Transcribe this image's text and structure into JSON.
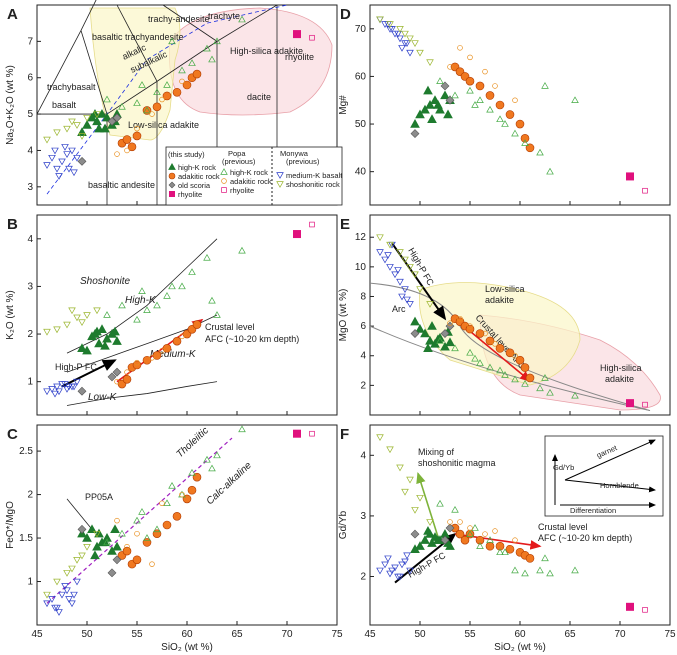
{
  "colors": {
    "hk": "#1e7b2e",
    "adak": "#f07820",
    "adak_edge": "#b03a00",
    "old": "#8c8c8c",
    "rhy": "#e0117d",
    "mkb": "#2a3cc8",
    "shosh": "#9ab52d",
    "popa_hk": "#44aa44",
    "popa_adak": "#e89020",
    "popa_rhy": "#e0117d",
    "red": "#e41a1c",
    "purple": "#a020c0",
    "blue": "#1a2ee0"
  },
  "chart_data": [
    {
      "id": "A",
      "type": "scatter",
      "xlim": [
        45,
        75
      ],
      "ylim": [
        2.5,
        8
      ],
      "ylabel": "Na₂O+K₂O (wt %)",
      "yticks": [
        3,
        4,
        5,
        6,
        7
      ],
      "fields": [
        "basalt",
        "trachybasalt",
        "basaltic trachyandesite",
        "trachy-andesite",
        "trachyte",
        "basaltic andesite",
        "andesite",
        "dacite",
        "rhyolite"
      ],
      "annotations": [
        "alkalic",
        "subalkalic",
        "High-silica adakite",
        "Low-silica adakite"
      ],
      "legend": {
        "this_study_title": "(this study)",
        "popa_title": "Popa",
        "popa_sub": "(previous)",
        "monywa_title": "Monywa",
        "monywa_sub": "(previous)",
        "this_study": [
          "high-K rock",
          "adakitic rock",
          "old scoria",
          "rhyolite"
        ],
        "popa": [
          "high-K rock",
          "adakitic rock",
          "rhyolite"
        ],
        "monywa": [
          "medium-K basalt",
          "shoshonitic rock"
        ]
      }
    },
    {
      "id": "B",
      "type": "scatter",
      "xlim": [
        45,
        75
      ],
      "ylim": [
        0.3,
        4.5
      ],
      "ylabel": "K₂O (wt %)",
      "yticks": [
        1,
        2,
        3,
        4
      ],
      "annotations": [
        "Shoshonite",
        "High-K",
        "Medium-K",
        "Low-K",
        "High-P FC",
        "Crustal level",
        "AFC (~10-20 km depth)"
      ]
    },
    {
      "id": "C",
      "type": "scatter",
      "xlim": [
        45,
        75
      ],
      "ylim": [
        0.5,
        2.8
      ],
      "ylabel": "FeO*/MgO",
      "yticks": [
        1,
        1.5,
        2,
        2.5
      ],
      "annotations": [
        "PP05A",
        "Tholeiitic",
        "Calc-alkaline"
      ]
    },
    {
      "id": "D",
      "type": "scatter",
      "xlim": [
        45,
        75
      ],
      "ylim": [
        33,
        75
      ],
      "ylabel": "Mg#",
      "yticks": [
        40,
        50,
        60,
        70
      ]
    },
    {
      "id": "E",
      "type": "scatter",
      "xlim": [
        45,
        75
      ],
      "ylim": [
        0,
        13.5
      ],
      "ylabel": "MgO (wt %)",
      "yticks": [
        2,
        4,
        6,
        8,
        10,
        12
      ],
      "annotations": [
        "High-P FC",
        "Low-silica",
        "adakite",
        "Crustal level AFC",
        "Arc",
        "High-silica",
        "adakite"
      ]
    },
    {
      "id": "F",
      "type": "scatter",
      "xlim": [
        45,
        75
      ],
      "ylim": [
        1.2,
        4.5
      ],
      "ylabel": "Gd/Yb",
      "xlabel": "SiO₂ (wt %)",
      "yticks": [
        2,
        3,
        4
      ],
      "xticks": [
        45,
        50,
        55,
        60,
        65,
        70,
        75
      ],
      "annotations": [
        "Mixing of",
        "shoshonitic magma",
        "Crustal level",
        "AFC (~10-20 km depth)",
        "High-P FC",
        "Gd/Yb",
        "garnet",
        "Hornblende",
        "Differentiation"
      ]
    }
  ],
  "xlabel": "SiO₂ (wt %)",
  "xticks": [
    45,
    50,
    55,
    60,
    65,
    70,
    75
  ],
  "points": {
    "hk": [
      [
        50,
        4.7,
        1.65,
        1.5,
        52,
        5.8,
        2.5
      ],
      [
        50.5,
        4.9,
        1.95,
        1.6,
        53,
        5.5,
        2.6
      ],
      [
        51,
        4.8,
        2.05,
        1.4,
        54,
        5.0,
        2.7
      ],
      [
        51.2,
        4.6,
        1.8,
        1.55,
        51,
        6.0,
        2.55
      ],
      [
        51.5,
        5.0,
        2.1,
        1.45,
        55,
        4.8,
        2.65
      ],
      [
        52,
        4.9,
        1.9,
        1.5,
        53,
        5.2,
        2.6
      ],
      [
        52.5,
        4.7,
        2.0,
        1.35,
        56,
        4.6,
        2.7
      ],
      [
        53,
        5.0,
        1.85,
        1.4,
        55,
        4.9,
        2.5
      ],
      [
        49.5,
        4.5,
        1.7,
        1.55,
        50,
        6.3,
        2.45
      ],
      [
        50.8,
        5.0,
        2.0,
        1.3,
        57,
        4.5,
        2.75
      ],
      [
        52.8,
        4.8,
        2.05,
        1.6,
        52,
        5.6,
        2.55
      ],
      [
        51.8,
        4.6,
        1.75,
        1.45,
        54,
        5.1,
        2.6
      ]
    ],
    "adak": [
      [
        53.5,
        4.2,
        0.95,
        1.3,
        62,
        6.5,
        2.8
      ],
      [
        54,
        4.3,
        1.05,
        1.35,
        61,
        6.3,
        2.7
      ],
      [
        56,
        5.1,
        1.45,
        1.45,
        58,
        5.5,
        2.6
      ],
      [
        57,
        5.2,
        1.55,
        1.55,
        56,
        5.0,
        2.5
      ],
      [
        58,
        5.5,
        1.7,
        1.65,
        54,
        4.5,
        2.5
      ],
      [
        59,
        5.6,
        1.85,
        1.75,
        52,
        4.2,
        2.45
      ],
      [
        60,
        5.8,
        2.0,
        1.95,
        50,
        3.7,
        2.4
      ],
      [
        60.5,
        6.0,
        2.1,
        2.05,
        47,
        3.2,
        2.35
      ],
      [
        61,
        6.1,
        2.2,
        2.2,
        45,
        2.5,
        2.3
      ],
      [
        54.5,
        4.1,
        1.3,
        1.2,
        60,
        6.0,
        2.6
      ],
      [
        55,
        4.4,
        1.35,
        1.25,
        59,
        5.8,
        2.7
      ]
    ],
    "old": [
      [
        49.5,
        3.7,
        0.8,
        1.6,
        48,
        5.5,
        2.7
      ],
      [
        53,
        4.9,
        1.2,
        1.25,
        55,
        6.0,
        2.8
      ],
      [
        52.5,
        4.8,
        1.1,
        1.1,
        58,
        5.5,
        2.6
      ]
    ],
    "rhy": [
      [
        71,
        7.2,
        4.1,
        2.7,
        39,
        0.8,
        1.5
      ]
    ],
    "popa_rhy": [
      [
        72.5,
        7.1,
        4.3,
        2.7,
        36,
        0.7,
        1.45
      ]
    ],
    "mkb": [
      [
        46,
        3.6,
        0.8,
        0.75,
        72,
        11,
        2.1
      ],
      [
        46.5,
        3.8,
        0.85,
        0.8,
        71,
        10.5,
        2.2
      ],
      [
        47,
        3.5,
        0.9,
        0.7,
        70,
        10,
        2.05
      ],
      [
        47.5,
        3.7,
        0.95,
        0.85,
        69,
        9.5,
        2.15
      ],
      [
        48,
        3.9,
        0.85,
        0.9,
        68,
        9,
        2.0
      ],
      [
        48.5,
        4.0,
        0.9,
        0.75,
        67,
        8.5,
        2.25
      ],
      [
        47.2,
        3.3,
        0.8,
        0.65,
        70,
        11.5,
        2.1
      ],
      [
        48.2,
        3.5,
        0.9,
        0.8,
        66,
        8.0,
        2.2
      ],
      [
        46.8,
        4.0,
        0.75,
        0.7,
        71,
        10.8,
        2.3
      ],
      [
        47.8,
        4.1,
        0.95,
        0.95,
        69,
        9.8,
        2.0
      ],
      [
        49,
        3.8,
        1.0,
        1.0,
        65,
        7.5,
        2.1
      ],
      [
        48.7,
        3.4,
        0.9,
        0.85,
        67,
        7.8,
        2.35
      ]
    ],
    "shosh": [
      [
        46,
        4.3,
        2.05,
        0.85,
        72,
        12,
        4.3
      ],
      [
        47,
        4.5,
        2.1,
        1.0,
        71,
        11.5,
        4.1
      ],
      [
        48,
        4.6,
        2.2,
        1.1,
        70,
        11,
        3.8
      ],
      [
        49,
        4.7,
        2.35,
        1.25,
        68,
        10,
        3.6
      ],
      [
        50,
        4.9,
        2.4,
        1.4,
        65,
        8.5,
        3.3
      ],
      [
        49.5,
        4.4,
        2.25,
        1.3,
        67,
        9.5,
        3.1
      ],
      [
        48.5,
        4.8,
        2.5,
        1.15,
        69,
        10.5,
        3.4
      ],
      [
        51,
        5.0,
        2.5,
        1.55,
        63,
        7.5,
        2.9
      ]
    ],
    "popa_hk": [
      [
        55,
        5.3,
        2.3,
        1.7,
        57,
        4.2,
        2.7
      ],
      [
        56,
        5.1,
        2.5,
        1.5,
        55,
        3.5,
        2.5
      ],
      [
        57,
        5.6,
        2.6,
        1.6,
        53,
        3.2,
        2.6
      ],
      [
        58,
        5.8,
        2.8,
        1.9,
        51,
        3.0,
        2.4
      ],
      [
        59.5,
        6.2,
        3.0,
        2.0,
        48,
        2.4,
        2.1
      ],
      [
        60.5,
        6.4,
        3.3,
        2.25,
        46,
        2.1,
        2.05
      ],
      [
        62,
        6.8,
        3.6,
        2.4,
        44,
        1.8,
        2.1
      ],
      [
        63,
        7.0,
        2.4,
        2.45,
        40,
        1.5,
        2.05
      ],
      [
        65.5,
        7.6,
        3.75,
        2.75,
        55,
        1.3,
        2.1
      ],
      [
        62.5,
        6.5,
        2.7,
        2.3,
        58,
        2.5,
        2.3
      ],
      [
        53.5,
        5.2,
        2.6,
        1.55,
        56,
        4.5,
        3.1
      ],
      [
        55.5,
        5.8,
        2.9,
        1.8,
        54,
        3.8,
        2.8
      ],
      [
        58.5,
        7.0,
        3.0,
        2.1,
        50,
        2.7,
        2.4
      ],
      [
        52,
        5.4,
        2.4,
        1.45,
        59,
        5.0,
        3.2
      ]
    ],
    "popa_adak": [
      [
        54,
        4.0,
        1.2,
        1.4,
        66,
        6.5,
        2.9
      ],
      [
        55,
        4.6,
        1.4,
        1.55,
        64,
        6.0,
        2.8
      ],
      [
        56.5,
        5.0,
        1.5,
        1.2,
        61,
        5.5,
        2.7
      ],
      [
        53,
        3.9,
        1.0,
        1.7,
        62,
        6.2,
        2.9
      ],
      [
        57.5,
        5.4,
        1.65,
        1.9,
        58,
        4.8,
        2.75
      ],
      [
        59.5,
        5.9,
        1.95,
        2.0,
        55,
        4.0,
        2.6
      ]
    ]
  }
}
